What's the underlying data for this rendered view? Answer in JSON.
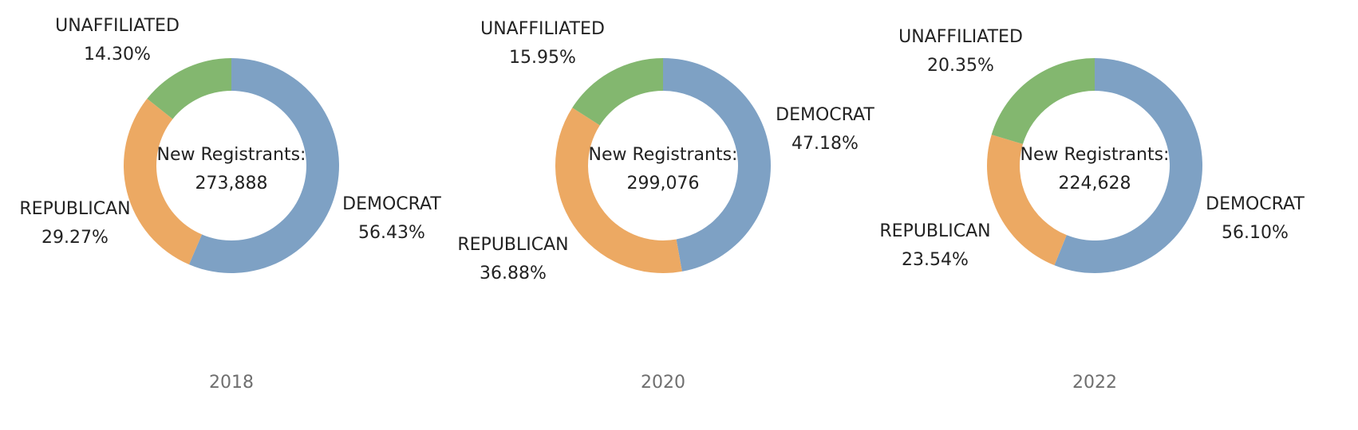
{
  "colors": {
    "DEMOCRAT": "#7ea1c4",
    "REPUBLICAN": "#eca963",
    "UNAFFILIATED": "#83b76f",
    "year_text": "#6f6f6f",
    "label_text": "#222222"
  },
  "chart_data": [
    {
      "type": "pie",
      "variant": "donut",
      "year": "2018",
      "center_label": "New Registrants:",
      "center_value": "273,888",
      "categories": [
        "DEMOCRAT",
        "REPUBLICAN",
        "UNAFFILIATED"
      ],
      "values": [
        56.43,
        29.27,
        14.3
      ],
      "value_labels": [
        "56.43%",
        "29.27%",
        "14.30%"
      ]
    },
    {
      "type": "pie",
      "variant": "donut",
      "year": "2020",
      "center_label": "New Registrants:",
      "center_value": "299,076",
      "categories": [
        "DEMOCRAT",
        "REPUBLICAN",
        "UNAFFILIATED"
      ],
      "values": [
        47.18,
        36.88,
        15.95
      ],
      "value_labels": [
        "47.18%",
        "36.88%",
        "15.95%"
      ]
    },
    {
      "type": "pie",
      "variant": "donut",
      "year": "2022",
      "center_label": "New Registrants:",
      "center_value": "224,628",
      "categories": [
        "DEMOCRAT",
        "REPUBLICAN",
        "UNAFFILIATED"
      ],
      "values": [
        56.1,
        23.54,
        20.35
      ],
      "value_labels": [
        "56.10%",
        "23.54%",
        "20.35%"
      ]
    }
  ]
}
